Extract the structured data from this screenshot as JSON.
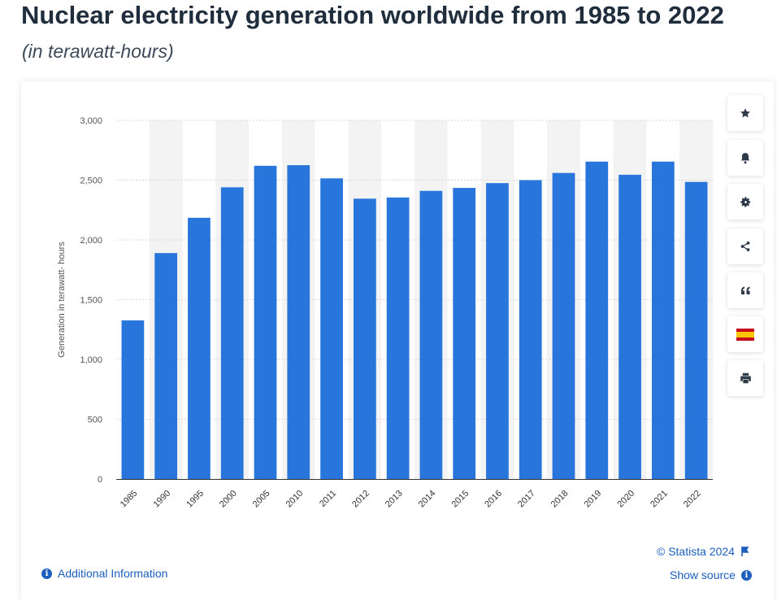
{
  "header": {
    "title": "Nuclear electricity generation worldwide from 1985 to 2022",
    "subtitle": "(in terawatt-hours)"
  },
  "toolbar": {
    "buttons": [
      {
        "name": "favorite-button",
        "icon": "star-icon"
      },
      {
        "name": "notification-button",
        "icon": "bell-icon"
      },
      {
        "name": "settings-button",
        "icon": "gear-icon"
      },
      {
        "name": "share-button",
        "icon": "share-icon"
      },
      {
        "name": "cite-button",
        "icon": "quote-icon"
      },
      {
        "name": "language-button",
        "icon": "spain-flag-icon"
      },
      {
        "name": "print-button",
        "icon": "printer-icon"
      }
    ]
  },
  "footer": {
    "credit": "© Statista 2024",
    "show_source": "Show source",
    "additional_info": "Additional Information"
  },
  "colors": {
    "bar": "#2875dc",
    "link": "#1c5fbd",
    "band": "#f3f3f3"
  },
  "chart_data": {
    "type": "bar",
    "title": "",
    "xlabel": "",
    "ylabel": "Generation in terawatt- hours",
    "categories": [
      "1985",
      "1990",
      "1995",
      "2000",
      "2005",
      "2010",
      "2011",
      "2012",
      "2013",
      "2014",
      "2015",
      "2016",
      "2017",
      "2018",
      "2019",
      "2020",
      "2021",
      "2022"
    ],
    "values": [
      1327,
      1890,
      2185,
      2440,
      2620,
      2625,
      2515,
      2345,
      2355,
      2410,
      2435,
      2475,
      2500,
      2560,
      2655,
      2545,
      2655,
      2485
    ],
    "yticks": [
      "0",
      "500",
      "1,000",
      "1,500",
      "2,000",
      "2,500",
      "3,000"
    ],
    "ylim": [
      0,
      3000
    ],
    "grid": true
  }
}
